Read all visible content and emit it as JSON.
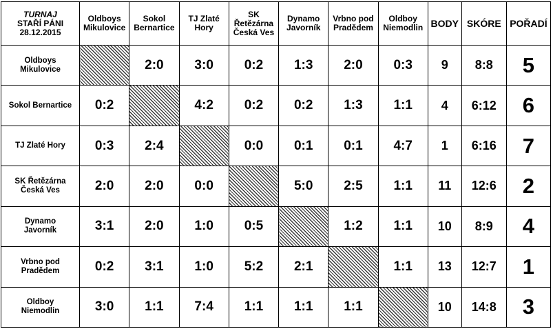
{
  "corner": {
    "line1": "TURNAJ",
    "line2": "STAŘÍ PÁNI",
    "line3": "28.12.2015"
  },
  "columns": {
    "teams": [
      [
        "Oldboys",
        "Mikulovice"
      ],
      [
        "Sokol",
        "Bernartice"
      ],
      [
        "TJ Zlaté",
        "Hory"
      ],
      [
        "SK",
        "Řetězárna",
        "Česká Ves"
      ],
      [
        "Dynamo",
        "Javorník"
      ],
      [
        "Vrbno pod",
        "Pradědem"
      ],
      [
        "Oldboy",
        "Niemodlin"
      ]
    ],
    "body": "BODY",
    "skore": "SKÓRE",
    "poradi": "POŘADÍ"
  },
  "rows": [
    {
      "name": [
        "Oldboys",
        "Mikulovice"
      ],
      "scores": [
        "",
        "2:0",
        "3:0",
        "0:2",
        "1:3",
        "2:0",
        "0:3"
      ],
      "body": "9",
      "skore": "8:8",
      "poradi": "5"
    },
    {
      "name": [
        "Sokol Bernartice"
      ],
      "scores": [
        "0:2",
        "",
        "4:2",
        "0:2",
        "0:2",
        "1:3",
        "1:1"
      ],
      "body": "4",
      "skore": "6:12",
      "poradi": "6"
    },
    {
      "name": [
        "TJ Zlaté Hory"
      ],
      "scores": [
        "0:3",
        "2:4",
        "",
        "0:0",
        "0:1",
        "0:1",
        "4:7"
      ],
      "body": "1",
      "skore": "6:16",
      "poradi": "7"
    },
    {
      "name": [
        "SK Řetězárna",
        "Česká Ves"
      ],
      "scores": [
        "2:0",
        "2:0",
        "0:0",
        "",
        "5:0",
        "2:5",
        "1:1"
      ],
      "body": "11",
      "skore": "12:6",
      "poradi": "2"
    },
    {
      "name": [
        "Dynamo",
        "Javorník"
      ],
      "scores": [
        "3:1",
        "2:0",
        "1:0",
        "0:5",
        "",
        "1:2",
        "1:1"
      ],
      "body": "10",
      "skore": "8:9",
      "poradi": "4"
    },
    {
      "name": [
        "Vrbno pod",
        "Pradědem"
      ],
      "scores": [
        "0:2",
        "3:1",
        "1:0",
        "5:2",
        "2:1",
        "",
        "1:1"
      ],
      "body": "13",
      "skore": "12:7",
      "poradi": "1"
    },
    {
      "name": [
        "Oldboy",
        "Niemodlin"
      ],
      "scores": [
        "3:0",
        "1:1",
        "7:4",
        "1:1",
        "1:1",
        "1:1",
        ""
      ],
      "body": "10",
      "skore": "14:8",
      "poradi": "3"
    }
  ]
}
